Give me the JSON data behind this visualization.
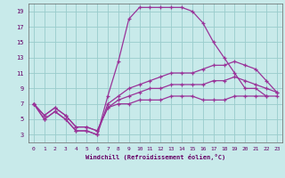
{
  "xlabel": "Windchill (Refroidissement éolien,°C)",
  "background_color": "#c8eaea",
  "line_color": "#993399",
  "grid_color": "#99cccc",
  "xlim": [
    -0.5,
    23.5
  ],
  "ylim": [
    2,
    20
  ],
  "xticks": [
    0,
    1,
    2,
    3,
    4,
    5,
    6,
    7,
    8,
    9,
    10,
    11,
    12,
    13,
    14,
    15,
    16,
    17,
    18,
    19,
    20,
    21,
    22,
    23
  ],
  "yticks": [
    3,
    5,
    7,
    9,
    11,
    13,
    15,
    17,
    19
  ],
  "series": [
    {
      "x": [
        0,
        1,
        2,
        3,
        4,
        5,
        6,
        7,
        8,
        9,
        10,
        11,
        12,
        13,
        14,
        15,
        16,
        17,
        18,
        19,
        20,
        21,
        22
      ],
      "y": [
        7,
        5,
        6,
        5,
        3.5,
        3.5,
        3,
        8,
        12.5,
        18,
        19.5,
        19.5,
        19.5,
        19.5,
        19.5,
        19,
        17.5,
        15,
        13,
        11,
        9,
        9,
        8
      ]
    },
    {
      "x": [
        0,
        1,
        2,
        3,
        4,
        5,
        6,
        7,
        8,
        9,
        10,
        11,
        12,
        13,
        14,
        15,
        16,
        17,
        18,
        19,
        20,
        21,
        22,
        23
      ],
      "y": [
        7,
        5,
        6,
        5,
        3.5,
        3.5,
        3,
        7,
        8,
        9,
        9.5,
        10,
        10.5,
        11,
        11,
        11,
        11.5,
        12,
        12,
        12.5,
        12,
        11.5,
        10,
        8.5
      ]
    },
    {
      "x": [
        0,
        1,
        2,
        3,
        4,
        5,
        6,
        7,
        8,
        9,
        10,
        11,
        12,
        13,
        14,
        15,
        16,
        17,
        18,
        19,
        20,
        21,
        22,
        23
      ],
      "y": [
        7,
        5.5,
        6.5,
        5.5,
        4,
        4,
        3.5,
        6.5,
        7.5,
        8,
        8.5,
        9,
        9,
        9.5,
        9.5,
        9.5,
        9.5,
        10,
        10,
        10.5,
        10,
        9.5,
        9,
        8.5
      ]
    },
    {
      "x": [
        0,
        1,
        2,
        3,
        4,
        5,
        6,
        7,
        8,
        9,
        10,
        11,
        12,
        13,
        14,
        15,
        16,
        17,
        18,
        19,
        20,
        21,
        22,
        23
      ],
      "y": [
        7,
        5.5,
        6.5,
        5.5,
        4,
        4,
        3.5,
        6.5,
        7,
        7,
        7.5,
        7.5,
        7.5,
        8,
        8,
        8,
        7.5,
        7.5,
        7.5,
        8,
        8,
        8,
        8,
        8
      ]
    }
  ]
}
